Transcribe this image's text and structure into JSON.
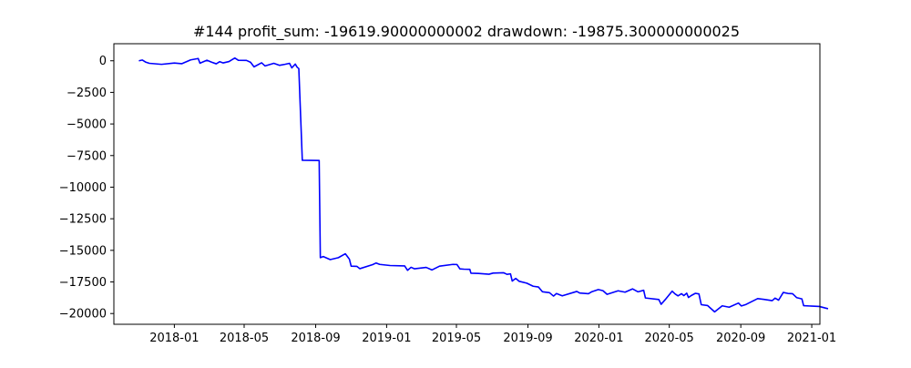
{
  "chart_data": {
    "type": "line",
    "title": "#144   profit_sum: -19619.90000000002 drawdown: -19875.300000000025",
    "xlabel": "",
    "ylabel": "",
    "x_axis_type": "date",
    "xlim": [
      "2017-09-19",
      "2021-01-15"
    ],
    "ylim": [
      -20850,
      1350
    ],
    "x_ticks": [
      "2018-01-01",
      "2018-05-01",
      "2018-09-01",
      "2019-01-01",
      "2019-05-01",
      "2019-09-01",
      "2020-01-01",
      "2020-05-01",
      "2020-09-01",
      "2021-01-01"
    ],
    "x_tick_labels": [
      "2018-01",
      "2018-05",
      "2018-09",
      "2019-01",
      "2019-05",
      "2019-09",
      "2020-01",
      "2020-05",
      "2020-09",
      "2021-01"
    ],
    "y_ticks": [
      0,
      -2500,
      -5000,
      -7500,
      -10000,
      -12500,
      -15000,
      -17500,
      -20000
    ],
    "y_tick_labels": [
      "0",
      "−2500",
      "−5000",
      "−7500",
      "−10000",
      "−12500",
      "−15000",
      "−17500",
      "−20000"
    ],
    "grid": false,
    "legend": "none",
    "series": [
      {
        "color": "#0000ff",
        "points": [
          [
            "2017-11-01",
            0
          ],
          [
            "2017-11-07",
            60
          ],
          [
            "2017-11-13",
            -110
          ],
          [
            "2017-11-19",
            -200
          ],
          [
            "2017-12-10",
            -280
          ],
          [
            "2018-01-01",
            -180
          ],
          [
            "2018-01-14",
            -230
          ],
          [
            "2018-01-29",
            70
          ],
          [
            "2018-02-11",
            180
          ],
          [
            "2018-02-14",
            -190
          ],
          [
            "2018-02-26",
            40
          ],
          [
            "2018-03-06",
            -110
          ],
          [
            "2018-03-14",
            -240
          ],
          [
            "2018-03-20",
            -70
          ],
          [
            "2018-03-26",
            -170
          ],
          [
            "2018-04-05",
            -60
          ],
          [
            "2018-04-15",
            220
          ],
          [
            "2018-04-21",
            40
          ],
          [
            "2018-05-05",
            30
          ],
          [
            "2018-05-12",
            -120
          ],
          [
            "2018-05-18",
            -480
          ],
          [
            "2018-05-31",
            -160
          ],
          [
            "2018-06-06",
            -410
          ],
          [
            "2018-06-21",
            -200
          ],
          [
            "2018-07-01",
            -360
          ],
          [
            "2018-07-10",
            -280
          ],
          [
            "2018-07-18",
            -200
          ],
          [
            "2018-07-22",
            -560
          ],
          [
            "2018-07-28",
            -260
          ],
          [
            "2018-07-31",
            -500
          ],
          [
            "2018-08-03",
            -620
          ],
          [
            "2018-08-09",
            -7870
          ],
          [
            "2018-09-07",
            -7890
          ],
          [
            "2018-09-09",
            -15580
          ],
          [
            "2018-09-14",
            -15490
          ],
          [
            "2018-09-26",
            -15730
          ],
          [
            "2018-10-10",
            -15580
          ],
          [
            "2018-10-22",
            -15270
          ],
          [
            "2018-10-29",
            -15700
          ],
          [
            "2018-11-01",
            -16250
          ],
          [
            "2018-11-11",
            -16270
          ],
          [
            "2018-11-16",
            -16450
          ],
          [
            "2018-12-08",
            -16130
          ],
          [
            "2018-12-14",
            -16000
          ],
          [
            "2018-12-20",
            -16110
          ],
          [
            "2019-01-07",
            -16200
          ],
          [
            "2019-02-01",
            -16230
          ],
          [
            "2019-02-06",
            -16580
          ],
          [
            "2019-02-12",
            -16340
          ],
          [
            "2019-02-18",
            -16460
          ],
          [
            "2019-03-10",
            -16350
          ],
          [
            "2019-03-20",
            -16550
          ],
          [
            "2019-04-02",
            -16250
          ],
          [
            "2019-04-25",
            -16110
          ],
          [
            "2019-05-02",
            -16120
          ],
          [
            "2019-05-07",
            -16470
          ],
          [
            "2019-05-14",
            -16490
          ],
          [
            "2019-05-24",
            -16500
          ],
          [
            "2019-05-26",
            -16810
          ],
          [
            "2019-06-08",
            -16830
          ],
          [
            "2019-06-26",
            -16890
          ],
          [
            "2019-07-03",
            -16800
          ],
          [
            "2019-07-21",
            -16770
          ],
          [
            "2019-07-27",
            -16900
          ],
          [
            "2019-08-02",
            -16860
          ],
          [
            "2019-08-05",
            -17430
          ],
          [
            "2019-08-11",
            -17220
          ],
          [
            "2019-08-17",
            -17450
          ],
          [
            "2019-08-30",
            -17600
          ],
          [
            "2019-09-10",
            -17840
          ],
          [
            "2019-09-19",
            -17900
          ],
          [
            "2019-09-26",
            -18280
          ],
          [
            "2019-10-08",
            -18350
          ],
          [
            "2019-10-15",
            -18620
          ],
          [
            "2019-10-20",
            -18420
          ],
          [
            "2019-10-30",
            -18600
          ],
          [
            "2019-11-24",
            -18250
          ],
          [
            "2019-11-29",
            -18380
          ],
          [
            "2019-12-14",
            -18430
          ],
          [
            "2019-12-20",
            -18270
          ],
          [
            "2019-12-31",
            -18100
          ],
          [
            "2020-01-08",
            -18190
          ],
          [
            "2020-01-15",
            -18480
          ],
          [
            "2020-02-03",
            -18200
          ],
          [
            "2020-02-15",
            -18310
          ],
          [
            "2020-02-28",
            -18050
          ],
          [
            "2020-03-08",
            -18280
          ],
          [
            "2020-03-18",
            -18160
          ],
          [
            "2020-03-21",
            -18770
          ],
          [
            "2020-04-13",
            -18890
          ],
          [
            "2020-04-17",
            -19270
          ],
          [
            "2020-04-24",
            -18900
          ],
          [
            "2020-05-06",
            -18230
          ],
          [
            "2020-05-11",
            -18450
          ],
          [
            "2020-05-16",
            -18600
          ],
          [
            "2020-05-22",
            -18430
          ],
          [
            "2020-05-26",
            -18580
          ],
          [
            "2020-05-31",
            -18390
          ],
          [
            "2020-06-03",
            -18730
          ],
          [
            "2020-06-08",
            -18570
          ],
          [
            "2020-06-15",
            -18400
          ],
          [
            "2020-06-21",
            -18450
          ],
          [
            "2020-06-25",
            -19300
          ],
          [
            "2020-07-06",
            -19370
          ],
          [
            "2020-07-18",
            -19870
          ],
          [
            "2020-07-31",
            -19390
          ],
          [
            "2020-08-12",
            -19500
          ],
          [
            "2020-08-28",
            -19170
          ],
          [
            "2020-09-02",
            -19400
          ],
          [
            "2020-09-10",
            -19280
          ],
          [
            "2020-09-30",
            -18820
          ],
          [
            "2020-10-11",
            -18880
          ],
          [
            "2020-10-25",
            -18980
          ],
          [
            "2020-10-30",
            -18780
          ],
          [
            "2020-11-05",
            -18940
          ],
          [
            "2020-11-13",
            -18330
          ],
          [
            "2020-11-21",
            -18410
          ],
          [
            "2020-11-29",
            -18430
          ],
          [
            "2020-12-06",
            -18740
          ],
          [
            "2020-12-15",
            -18840
          ],
          [
            "2020-12-18",
            -19380
          ],
          [
            "2021-01-14",
            -19440
          ],
          [
            "2021-01-29",
            -19620
          ]
        ]
      }
    ]
  }
}
